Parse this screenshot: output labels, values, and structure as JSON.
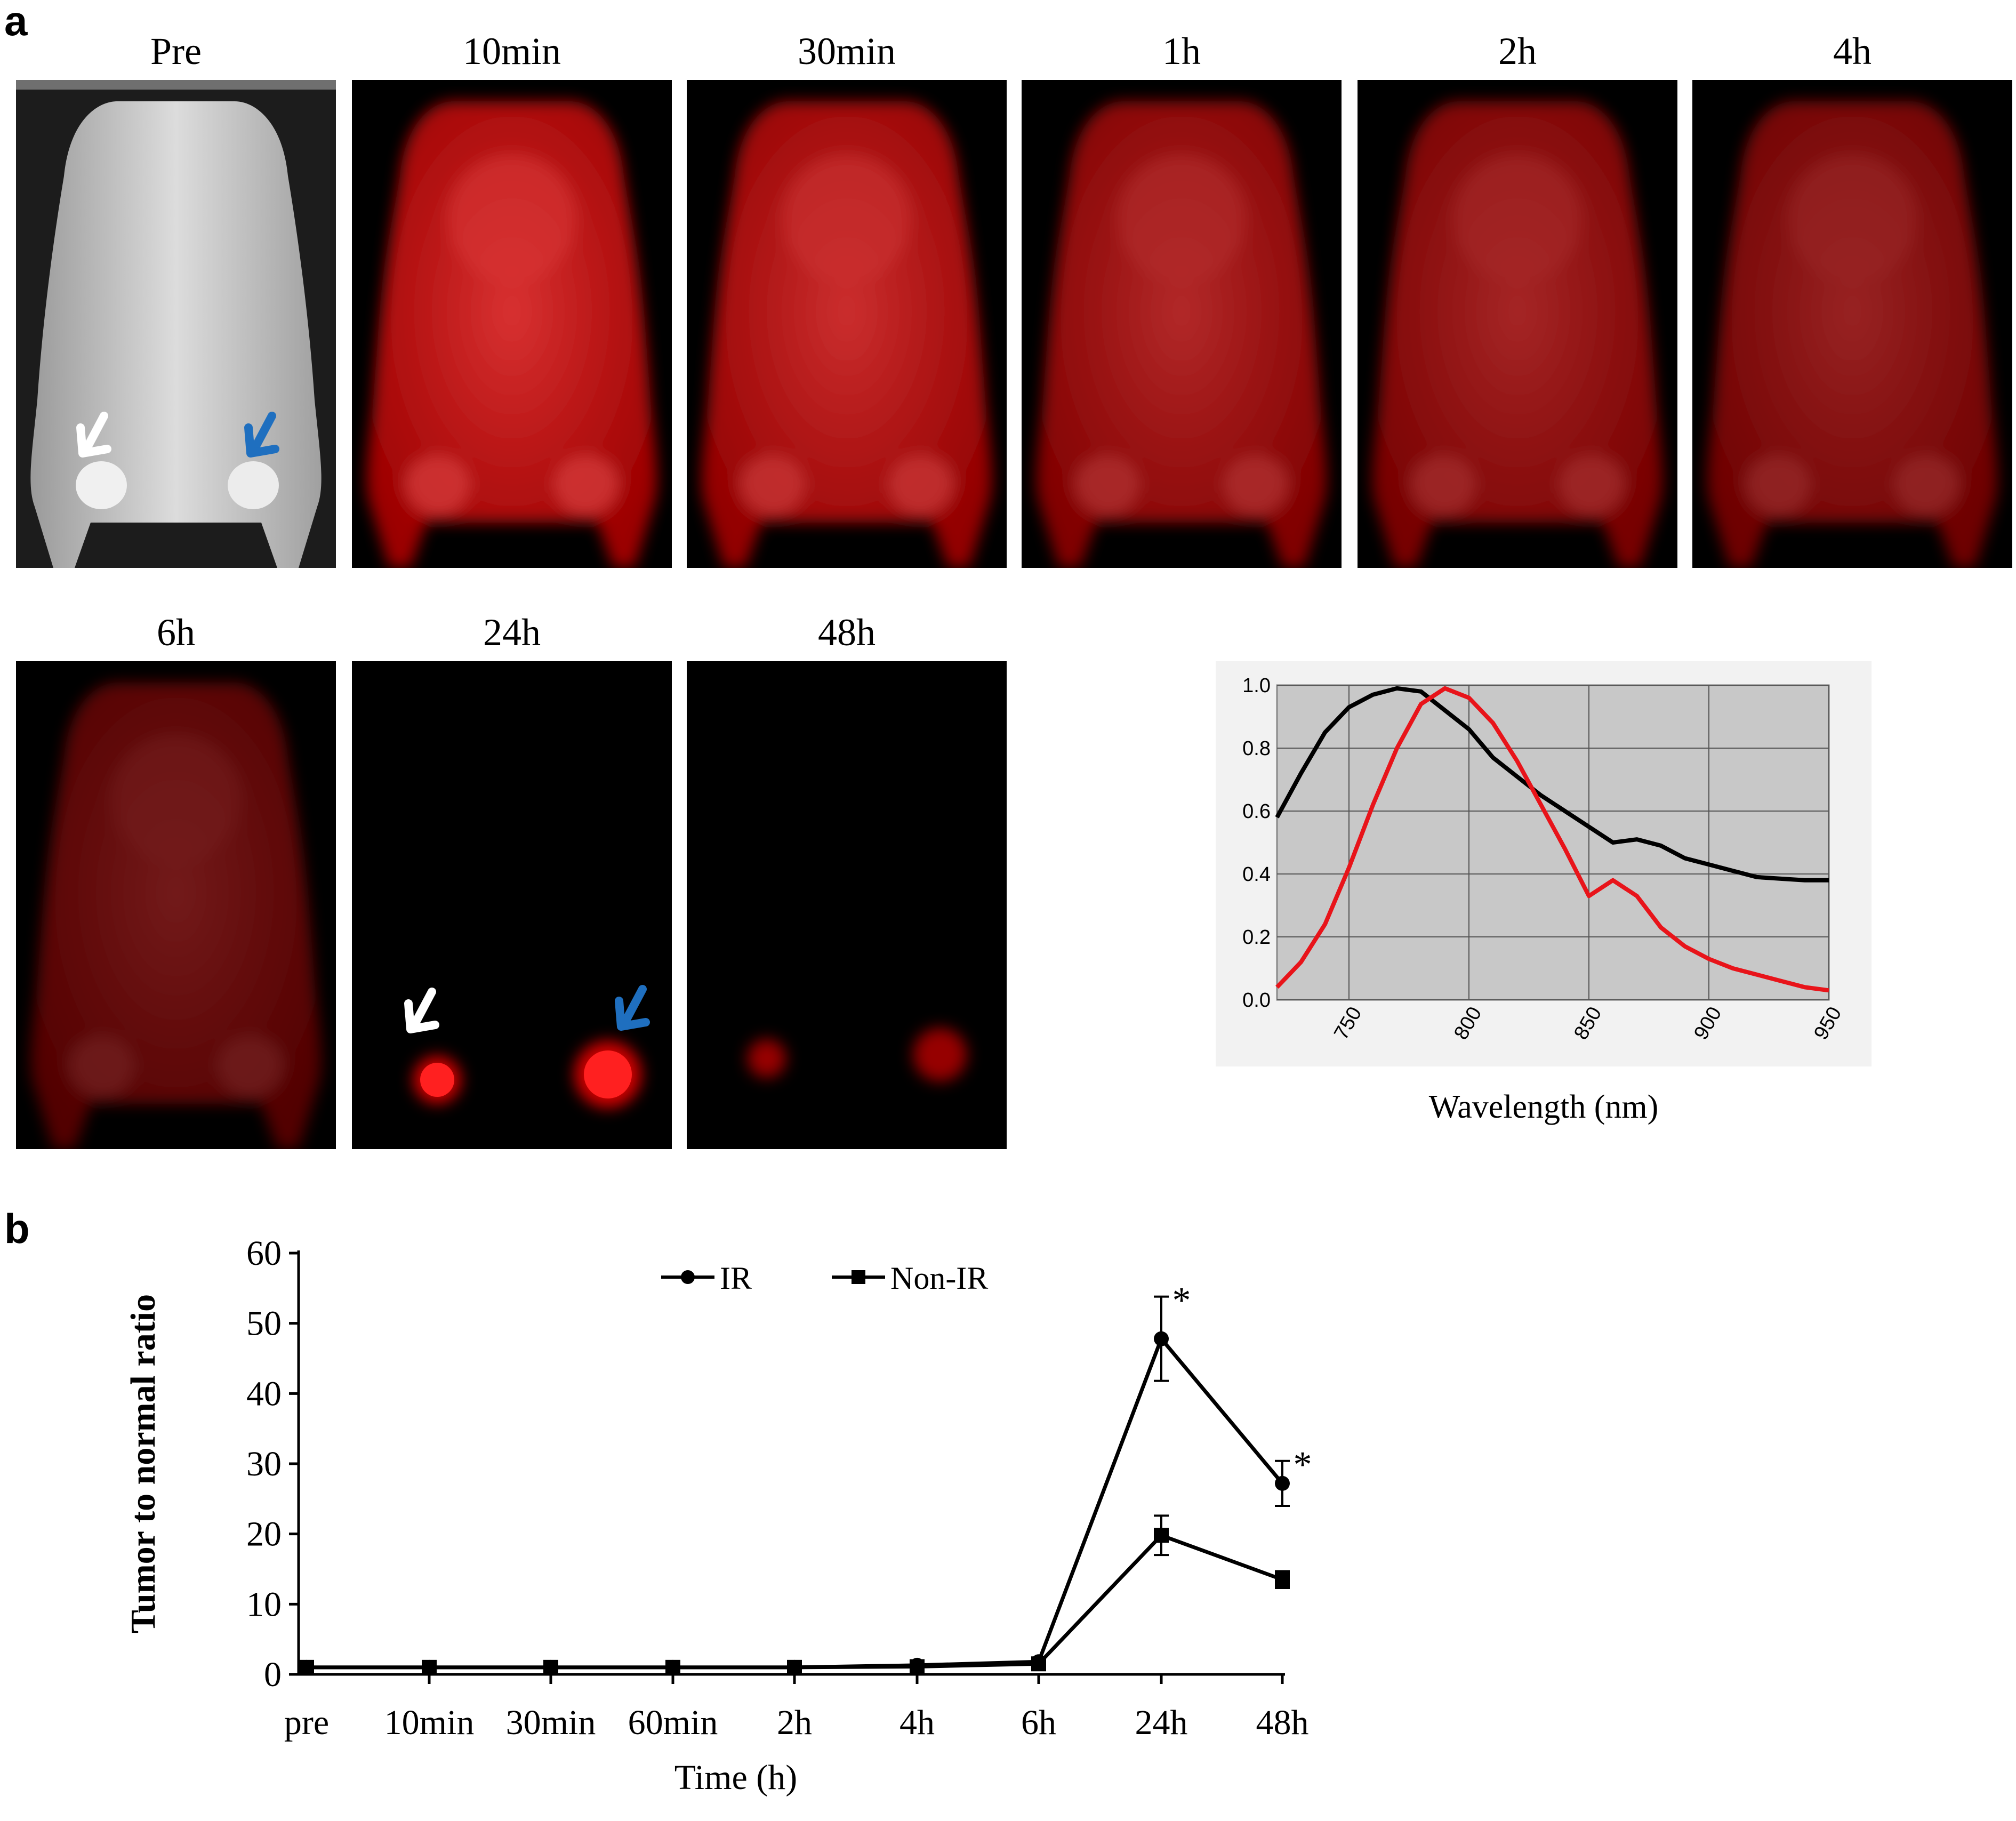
{
  "panel_a_letter": "a",
  "panel_b_letter": "b",
  "image_labels": [
    "Pre",
    "10min",
    "30min",
    "1h",
    "2h",
    "4h",
    "6h",
    "24h",
    "48h"
  ],
  "images": [
    {
      "label": "Pre",
      "kind": "white-light-mouse",
      "arrows": [
        "white-arrow",
        "blue-arrow"
      ]
    },
    {
      "label": "10min",
      "kind": "fluorescence",
      "whole_body_signal": 0.85
    },
    {
      "label": "30min",
      "kind": "fluorescence",
      "whole_body_signal": 0.8
    },
    {
      "label": "1h",
      "kind": "fluorescence",
      "whole_body_signal": 0.7
    },
    {
      "label": "2h",
      "kind": "fluorescence",
      "whole_body_signal": 0.65
    },
    {
      "label": "4h",
      "kind": "fluorescence",
      "whole_body_signal": 0.6
    },
    {
      "label": "6h",
      "kind": "fluorescence",
      "whole_body_signal": 0.45
    },
    {
      "label": "24h",
      "kind": "fluorescence",
      "whole_body_signal": 0.0,
      "arrows": [
        "white-arrow",
        "blue-arrow"
      ]
    },
    {
      "label": "48h",
      "kind": "fluorescence",
      "whole_body_signal": 0.0
    }
  ],
  "colors": {
    "fluor_red": "#e60000",
    "white_arrow": "#ffffff",
    "blue_arrow": "#1f6fbf",
    "excitation_line": "#000000",
    "emission_line": "#e8141a",
    "plot_bg": "#c8c8c8"
  },
  "chart_data": [
    {
      "type": "line",
      "xlabel": "Wavelength (nm)",
      "ylabel": "",
      "xlim": [
        720,
        950
      ],
      "ylim": [
        0,
        1.0
      ],
      "y_ticks": [
        "0.0",
        "0.2",
        "0.4",
        "0.6",
        "0.8",
        "1.0"
      ],
      "x_ticks": [
        "750",
        "800",
        "850",
        "900",
        "950"
      ],
      "grid": true,
      "series": [
        {
          "color": "#000000",
          "x": [
            720,
            730,
            740,
            750,
            760,
            770,
            780,
            790,
            800,
            810,
            820,
            830,
            840,
            850,
            860,
            870,
            880,
            890,
            900,
            910,
            920,
            930,
            940,
            950
          ],
          "y": [
            0.58,
            0.72,
            0.85,
            0.93,
            0.97,
            0.99,
            0.98,
            0.92,
            0.86,
            0.77,
            0.71,
            0.65,
            0.6,
            0.55,
            0.5,
            0.51,
            0.49,
            0.45,
            0.43,
            0.41,
            0.39,
            0.385,
            0.38,
            0.38
          ]
        },
        {
          "color": "#e8141a",
          "x": [
            720,
            730,
            740,
            750,
            760,
            770,
            780,
            790,
            800,
            810,
            820,
            830,
            840,
            850,
            860,
            870,
            880,
            890,
            900,
            910,
            920,
            930,
            940,
            950
          ],
          "y": [
            0.04,
            0.12,
            0.24,
            0.42,
            0.62,
            0.8,
            0.94,
            0.99,
            0.96,
            0.88,
            0.76,
            0.62,
            0.48,
            0.33,
            0.38,
            0.33,
            0.23,
            0.17,
            0.13,
            0.1,
            0.08,
            0.06,
            0.04,
            0.03
          ]
        }
      ]
    },
    {
      "type": "line",
      "xlabel": "Time (h)",
      "ylabel": "Tumor to normal ratio",
      "categories": [
        "pre",
        "10min",
        "30min",
        "60min",
        "2h",
        "4h",
        "6h",
        "24h",
        "48h"
      ],
      "ylim": [
        0,
        60
      ],
      "y_ticks": [
        "0",
        "10",
        "20",
        "30",
        "40",
        "50",
        "60"
      ],
      "grid": false,
      "legend": "top-center",
      "series": [
        {
          "name": "IR",
          "marker": "circle",
          "values": [
            1.0,
            1.0,
            1.0,
            1.0,
            1.0,
            1.3,
            1.8,
            47.8,
            27.2
          ],
          "error": [
            0.2,
            0.2,
            0.2,
            0.2,
            0.2,
            0.2,
            0.3,
            6.0,
            3.2
          ],
          "significance": [
            "",
            "",
            "",
            "",
            "",
            "",
            "",
            "*",
            "*"
          ]
        },
        {
          "name": "Non-IR",
          "marker": "square",
          "values": [
            1.0,
            1.0,
            1.0,
            1.0,
            1.0,
            1.1,
            1.5,
            19.8,
            13.5
          ],
          "error": [
            0.2,
            0.2,
            0.2,
            0.2,
            0.2,
            0.2,
            0.3,
            2.8,
            1.2
          ],
          "significance": [
            "",
            "",
            "",
            "",
            "",
            "",
            "",
            "",
            ""
          ]
        }
      ]
    }
  ]
}
